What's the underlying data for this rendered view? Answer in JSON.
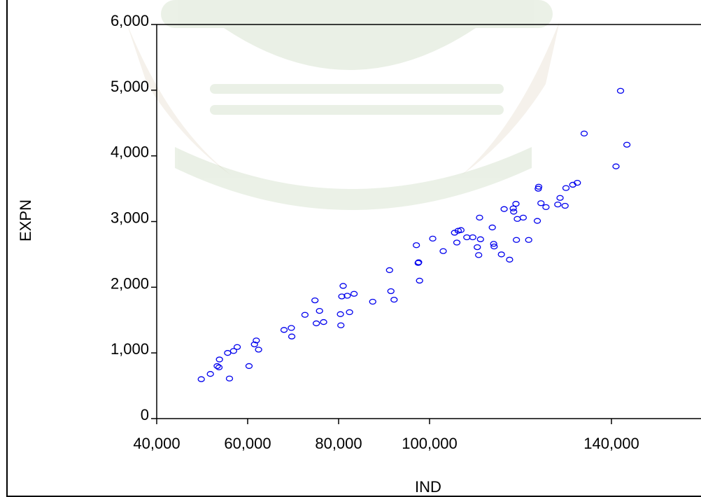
{
  "chart_data": {
    "type": "scatter",
    "title": "",
    "xlabel": "IND",
    "ylabel": "EXPN",
    "xlim": [
      40000,
      160000
    ],
    "ylim": [
      0,
      6000
    ],
    "xticks": [
      40000,
      60000,
      80000,
      100000,
      140000
    ],
    "xtick_labels": [
      "40,000",
      "60,000",
      "80,000",
      "100,000",
      "140,000"
    ],
    "yticks": [
      0,
      1000,
      2000,
      3000,
      4000,
      5000,
      6000
    ],
    "ytick_labels": [
      "0",
      "1,000",
      "2,000",
      "3,000",
      "4,000",
      "5,000",
      "6,000"
    ],
    "grid": false,
    "legend": "none",
    "marker": "hollow-circle",
    "marker_color": "#0000ee",
    "points": [
      [
        49800,
        600
      ],
      [
        51800,
        680
      ],
      [
        53300,
        800
      ],
      [
        53700,
        780
      ],
      [
        53800,
        900
      ],
      [
        55600,
        1000
      ],
      [
        56000,
        610
      ],
      [
        56900,
        1030
      ],
      [
        57700,
        1090
      ],
      [
        60300,
        800
      ],
      [
        61500,
        1130
      ],
      [
        61900,
        1190
      ],
      [
        62400,
        1050
      ],
      [
        68000,
        1350
      ],
      [
        69600,
        1380
      ],
      [
        69700,
        1250
      ],
      [
        72600,
        1580
      ],
      [
        74800,
        1800
      ],
      [
        75100,
        1450
      ],
      [
        75800,
        1640
      ],
      [
        76700,
        1470
      ],
      [
        80400,
        1590
      ],
      [
        80500,
        1420
      ],
      [
        80700,
        1860
      ],
      [
        81000,
        2020
      ],
      [
        81900,
        1870
      ],
      [
        82400,
        1620
      ],
      [
        83400,
        1900
      ],
      [
        87500,
        1780
      ],
      [
        91200,
        2260
      ],
      [
        91500,
        1940
      ],
      [
        92200,
        1810
      ],
      [
        97100,
        2640
      ],
      [
        97500,
        2370
      ],
      [
        97600,
        2380
      ],
      [
        97800,
        2100
      ],
      [
        100700,
        2740
      ],
      [
        103000,
        2550
      ],
      [
        105500,
        2830
      ],
      [
        106000,
        2680
      ],
      [
        106300,
        2860
      ],
      [
        106900,
        2870
      ],
      [
        108200,
        2760
      ],
      [
        109500,
        2760
      ],
      [
        110500,
        2610
      ],
      [
        110800,
        2490
      ],
      [
        111000,
        3060
      ],
      [
        111200,
        2730
      ],
      [
        113800,
        2910
      ],
      [
        114100,
        2660
      ],
      [
        114200,
        2620
      ],
      [
        115800,
        2500
      ],
      [
        116400,
        3190
      ],
      [
        117600,
        2420
      ],
      [
        118400,
        3200
      ],
      [
        118500,
        3150
      ],
      [
        119000,
        3270
      ],
      [
        119100,
        2720
      ],
      [
        119300,
        3040
      ],
      [
        120600,
        3060
      ],
      [
        121800,
        2720
      ],
      [
        123700,
        3010
      ],
      [
        123900,
        3500
      ],
      [
        124000,
        3530
      ],
      [
        124500,
        3280
      ],
      [
        125600,
        3220
      ],
      [
        128200,
        3260
      ],
      [
        128700,
        3360
      ],
      [
        129800,
        3240
      ],
      [
        130000,
        3510
      ],
      [
        131500,
        3560
      ],
      [
        132500,
        3590
      ],
      [
        134000,
        4340
      ],
      [
        141000,
        3840
      ],
      [
        142000,
        4990
      ],
      [
        143400,
        4170
      ]
    ]
  }
}
